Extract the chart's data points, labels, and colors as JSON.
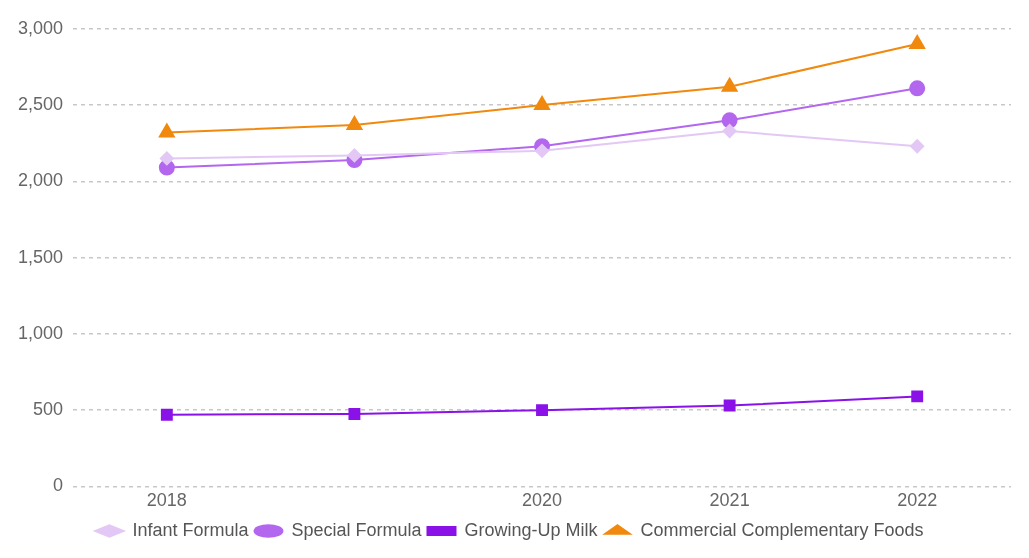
{
  "chart_data": {
    "type": "line",
    "categories": [
      "2018",
      null,
      "2020",
      "2021",
      "2022"
    ],
    "series": [
      {
        "name": "Infant Formula",
        "color": "#e3c8f5",
        "marker": "diamond",
        "values": [
          2150,
          2170,
          2200,
          2330,
          2230
        ]
      },
      {
        "name": "Special Formula",
        "color": "#b366ee",
        "marker": "circle",
        "values": [
          2090,
          2140,
          2230,
          2400,
          2610
        ]
      },
      {
        "name": "Growing-Up Milk",
        "color": "#8a11e8",
        "marker": "square",
        "values": [
          470,
          475,
          500,
          530,
          590
        ]
      },
      {
        "name": "Commercial Complementary Foods",
        "color": "#f0890e",
        "marker": "triangle",
        "values": [
          2320,
          2370,
          2500,
          2620,
          2900
        ]
      }
    ],
    "ylim": [
      0,
      3000
    ],
    "yticks": [
      {
        "value": 0,
        "label": "0"
      },
      {
        "value": 500,
        "label": "500"
      },
      {
        "value": 1000,
        "label": "1,000"
      },
      {
        "value": 1500,
        "label": "1,500"
      },
      {
        "value": 2000,
        "label": "2,000"
      },
      {
        "value": 2500,
        "label": "2,500"
      },
      {
        "value": 3000,
        "label": "3,000"
      }
    ],
    "grid": "y",
    "legend": "bottom",
    "line_style": "solid"
  }
}
